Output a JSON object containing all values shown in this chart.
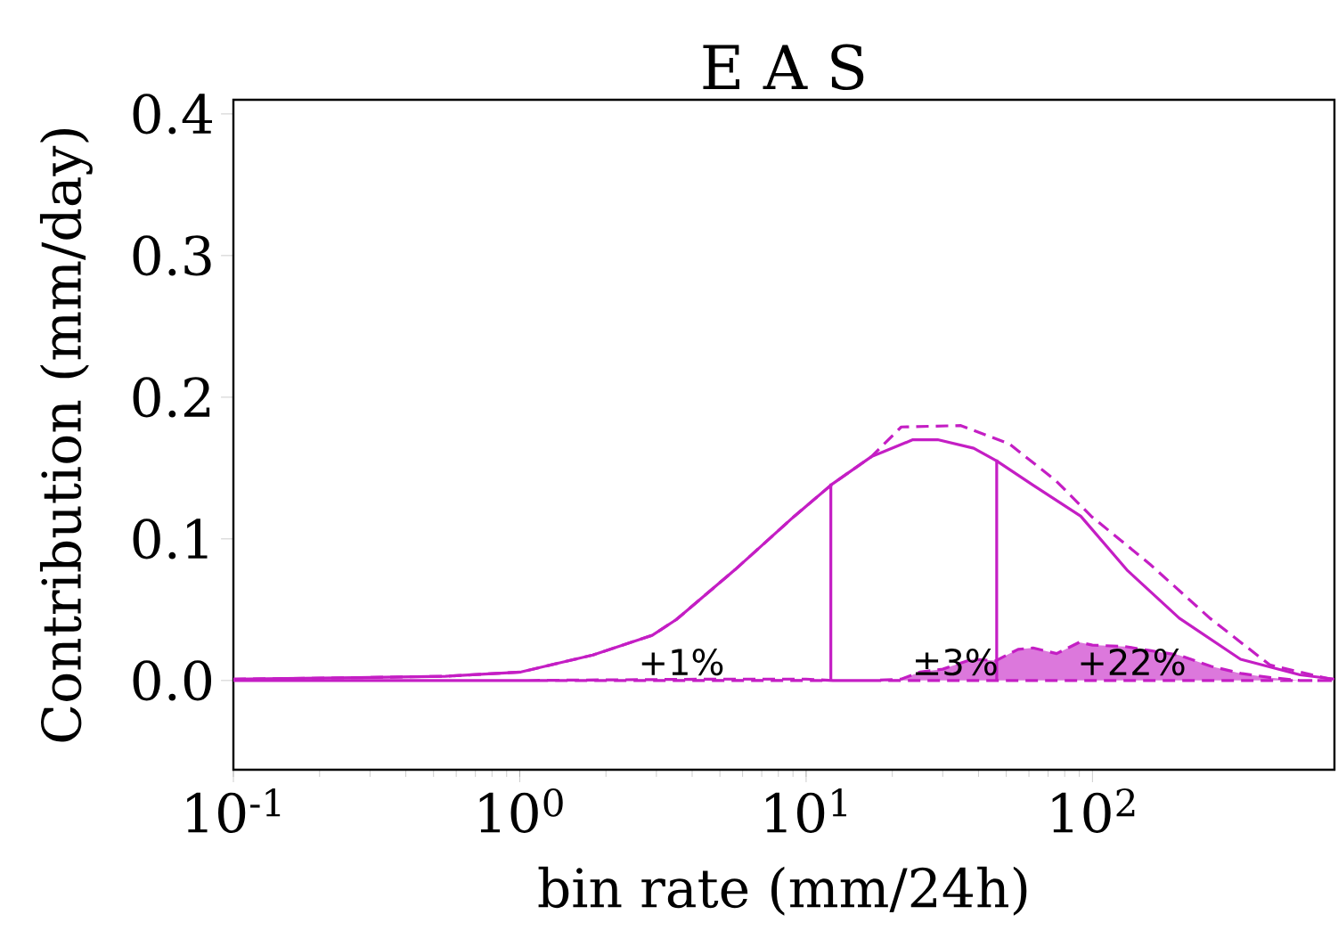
{
  "chart_data": {
    "type": "line",
    "title": "E A S",
    "xlabel": "bin rate (mm/24h)",
    "ylabel": "Contribution (mm/day)",
    "log": "x",
    "xlim": [
      0.1,
      700
    ],
    "ylim": [
      -0.063,
      0.41
    ],
    "xticks": [
      {
        "value": 0.1,
        "label": "10$^{-1}$"
      },
      {
        "value": 1,
        "label": "10$^{0}$"
      },
      {
        "value": 10,
        "label": "10$^{1}$"
      },
      {
        "value": 100,
        "label": "10$^{2}$"
      }
    ],
    "yticks": [
      {
        "value": 0,
        "label": "0.0"
      },
      {
        "value": 0.1,
        "label": "0.1"
      },
      {
        "value": 0.2,
        "label": "0.2"
      },
      {
        "value": 0.3,
        "label": "0.3"
      },
      {
        "value": 0.4,
        "label": "0.4"
      }
    ],
    "series": [
      {
        "line_style": "solid",
        "color": "#c41ec4",
        "x": [
          0.1,
          0.27,
          0.55,
          1.01,
          1.8,
          2.91,
          3.52,
          5.63,
          9.1,
          12.4,
          16.9,
          23.6,
          28.8,
          38.5,
          46.3,
          61.9,
          91,
          132,
          201,
          329,
          531,
          700
        ],
        "values": [
          0.001,
          0.002,
          0.003,
          0.006,
          0.018,
          0.032,
          0.043,
          0.078,
          0.116,
          0.139,
          0.158,
          0.17,
          0.17,
          0.164,
          0.155,
          0.138,
          0.116,
          0.078,
          0.044,
          0.015,
          0.004,
          0.001
        ]
      },
      {
        "line_style": "dashed",
        "color": "#c41ec4",
        "x": [
          0.1,
          0.27,
          0.55,
          1.01,
          1.8,
          2.91,
          3.52,
          5.63,
          9.1,
          12.4,
          16.9,
          21.5,
          34.7,
          51.3,
          74.6,
          99,
          159,
          257,
          416,
          676,
          700
        ],
        "values": [
          0.001,
          0.002,
          0.003,
          0.006,
          0.018,
          0.032,
          0.043,
          0.078,
          0.116,
          0.139,
          0.158,
          0.179,
          0.18,
          0.167,
          0.141,
          0.116,
          0.082,
          0.044,
          0.011,
          0.001,
          0.001
        ]
      },
      {
        "type": "area",
        "line_style": "dashed",
        "color": "#c41ec4",
        "x": [
          0.1,
          1,
          5,
          10,
          12.4,
          17,
          21.5,
          25,
          30,
          38,
          46,
          55,
          62,
          75,
          90,
          100,
          130,
          160,
          200,
          260,
          330,
          420,
          530,
          700
        ],
        "values": [
          0,
          0,
          0.001,
          0.001,
          0,
          0,
          0.001,
          0.006,
          0.008,
          0.015,
          0.014,
          0.022,
          0.023,
          0.019,
          0.027,
          0.025,
          0.024,
          0.021,
          0.018,
          0.01,
          0.005,
          0.002,
          0,
          0
        ]
      },
      {
        "line_style": "solid",
        "color": "#c41ec4",
        "x": [
          12.2,
          12.2
        ],
        "values": [
          0,
          0.139
        ]
      },
      {
        "line_style": "solid",
        "color": "#c41ec4",
        "x": [
          46.3,
          46.3
        ],
        "values": [
          0,
          0.156
        ]
      }
    ],
    "annotations": [
      "+1%",
      "±3%",
      "+22%"
    ]
  }
}
